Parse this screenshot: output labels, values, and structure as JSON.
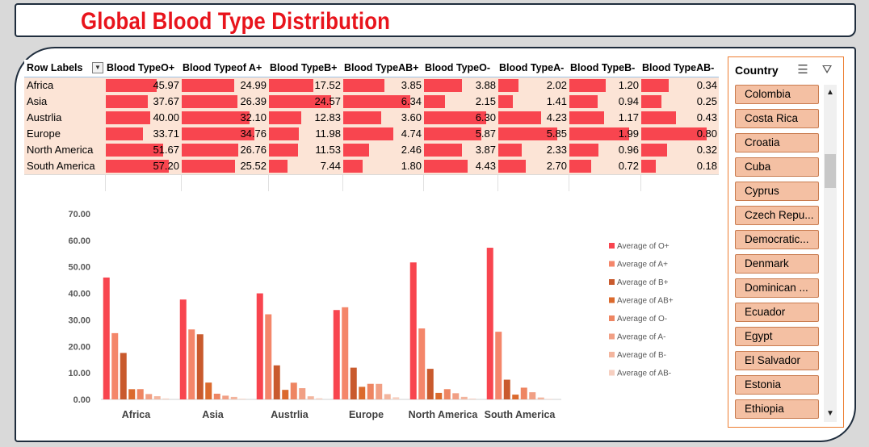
{
  "title": "Global Blood Type Distribution",
  "pivot": {
    "row_label_header": "Row Labels",
    "columns": [
      "Blood TypeO+",
      "Blood Typeof A+",
      "Blood TypeB+",
      "Blood TypeAB+",
      "Blood TypeO-",
      "Blood TypeA-",
      "Blood TypeB-",
      "Blood TypeAB-"
    ],
    "rows": [
      {
        "label": "Africa",
        "values": [
          "45.97",
          "24.99",
          "17.52",
          "3.85",
          "3.88",
          "2.02",
          "1.20",
          "0.34"
        ]
      },
      {
        "label": "Asia",
        "values": [
          "37.67",
          "26.39",
          "24.57",
          "6.34",
          "2.15",
          "1.41",
          "0.94",
          "0.25"
        ]
      },
      {
        "label": "Austrlia",
        "values": [
          "40.00",
          "32.10",
          "12.83",
          "3.60",
          "6.30",
          "4.23",
          "1.17",
          "0.43"
        ]
      },
      {
        "label": "Europe",
        "values": [
          "33.71",
          "34.76",
          "11.98",
          "4.74",
          "5.87",
          "5.85",
          "1.99",
          "0.80"
        ]
      },
      {
        "label": "North America",
        "values": [
          "51.67",
          "26.76",
          "11.53",
          "2.46",
          "3.87",
          "2.33",
          "0.96",
          "0.32"
        ]
      },
      {
        "label": "South America",
        "values": [
          "57.20",
          "25.52",
          "7.44",
          "1.80",
          "4.43",
          "2.70",
          "0.72",
          "0.18"
        ]
      }
    ]
  },
  "chart_data": {
    "type": "bar",
    "categories": [
      "Africa",
      "Asia",
      "Austrlia",
      "Europe",
      "North America",
      "South America"
    ],
    "series": [
      {
        "name": "Average of O+",
        "color": "#f8454f",
        "values": [
          45.97,
          37.67,
          40.0,
          33.71,
          51.67,
          57.2
        ]
      },
      {
        "name": "Average of A+",
        "color": "#f4866a",
        "values": [
          24.99,
          26.39,
          32.1,
          34.76,
          26.76,
          25.52
        ]
      },
      {
        "name": "Average of B+",
        "color": "#c95a2d",
        "values": [
          17.52,
          24.57,
          12.83,
          11.98,
          11.53,
          7.44
        ]
      },
      {
        "name": "Average of AB+",
        "color": "#db6a2d",
        "values": [
          3.85,
          6.34,
          3.6,
          4.74,
          2.46,
          1.8
        ]
      },
      {
        "name": "Average of O-",
        "color": "#ee8562",
        "values": [
          3.88,
          2.15,
          6.3,
          5.87,
          3.87,
          4.43
        ]
      },
      {
        "name": "Average of A-",
        "color": "#f19f84",
        "values": [
          2.02,
          1.41,
          4.23,
          5.85,
          2.33,
          2.7
        ]
      },
      {
        "name": "Average of B-",
        "color": "#f3b59e",
        "values": [
          1.2,
          0.94,
          1.17,
          1.99,
          0.96,
          0.72
        ]
      },
      {
        "name": "Average of AB-",
        "color": "#f6cfc0",
        "values": [
          0.34,
          0.25,
          0.43,
          0.8,
          0.32,
          0.18
        ]
      }
    ],
    "yticks": [
      "0.00",
      "10.00",
      "20.00",
      "30.00",
      "40.00",
      "50.00",
      "60.00",
      "70.00"
    ],
    "ylim": [
      0,
      70
    ],
    "legend_position": "right",
    "grid": false
  },
  "slicer": {
    "header": "Country",
    "items": [
      "Colombia",
      "Costa Rica",
      "Croatia",
      "Cuba",
      "Cyprus",
      "Czech Repu...",
      "Democratic...",
      "Denmark",
      "Dominican ...",
      "Ecuador",
      "Egypt",
      "El Salvador",
      "Estonia",
      "Ethiopia"
    ],
    "icons": [
      "multi-select-icon",
      "clear-filter-icon"
    ]
  }
}
